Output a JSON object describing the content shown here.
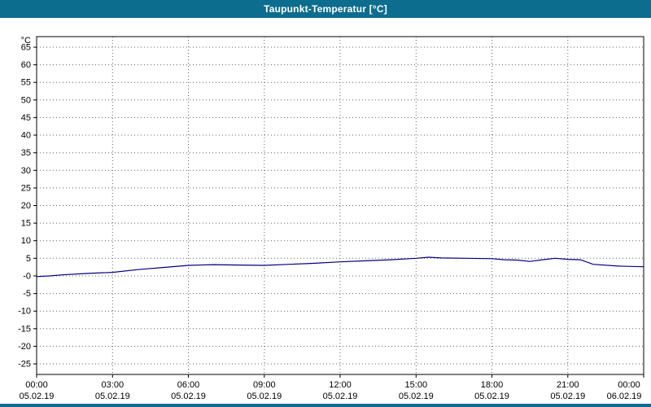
{
  "title": "Taupunkt-Temperatur [°C]",
  "colors": {
    "titlebar": "#0d6d8e",
    "line": "#000080",
    "grid": "#606060",
    "border": "#000000",
    "background": "#ffffff",
    "tick_text": "#000000"
  },
  "chart_data": {
    "type": "line",
    "title": "Taupunkt-Temperatur [°C]",
    "y_unit_label": "°C",
    "grid": true,
    "xlim": [
      0,
      24
    ],
    "ylim": [
      -28,
      68
    ],
    "x_ticks": [
      {
        "h": 0,
        "time": "00:00",
        "date": "05.02.19"
      },
      {
        "h": 3,
        "time": "03:00",
        "date": "05.02.19"
      },
      {
        "h": 6,
        "time": "06:00",
        "date": "05.02.19"
      },
      {
        "h": 9,
        "time": "09:00",
        "date": "05.02.19"
      },
      {
        "h": 12,
        "time": "12:00",
        "date": "05.02.19"
      },
      {
        "h": 15,
        "time": "15:00",
        "date": "05.02.19"
      },
      {
        "h": 18,
        "time": "18:00",
        "date": "05.02.19"
      },
      {
        "h": 21,
        "time": "21:00",
        "date": "05.02.19"
      },
      {
        "h": 24,
        "time": "00:00",
        "date": "06.02.19"
      }
    ],
    "y_ticks": [
      {
        "v": 65,
        "label": "65"
      },
      {
        "v": 60,
        "label": "60"
      },
      {
        "v": 55,
        "label": "55"
      },
      {
        "v": 50,
        "label": "50"
      },
      {
        "v": 45,
        "label": "45"
      },
      {
        "v": 40,
        "label": "40"
      },
      {
        "v": 35,
        "label": "35"
      },
      {
        "v": 30,
        "label": "30"
      },
      {
        "v": 25,
        "label": "25"
      },
      {
        "v": 20,
        "label": "20"
      },
      {
        "v": 15,
        "label": "15"
      },
      {
        "v": 10,
        "label": "10"
      },
      {
        "v": 5,
        "label": "5"
      },
      {
        "v": 0,
        "label": "-0"
      },
      {
        "v": -5,
        "label": "-5"
      },
      {
        "v": -10,
        "label": "-10"
      },
      {
        "v": -15,
        "label": "-15"
      },
      {
        "v": -20,
        "label": "-20"
      },
      {
        "v": -25,
        "label": "-25"
      }
    ],
    "series": [
      {
        "name": "Taupunkt-Temperatur",
        "color": "#000080",
        "x": [
          0,
          0.5,
          1,
          2,
          3,
          4,
          5,
          6,
          7,
          8,
          9,
          10,
          11,
          12,
          13,
          14,
          15,
          15.5,
          16,
          17,
          18,
          18.5,
          19,
          19.5,
          20,
          20.5,
          21,
          21.5,
          22,
          23,
          24
        ],
        "values": [
          -0.2,
          0,
          0.3,
          0.7,
          1.0,
          1.8,
          2.4,
          3.0,
          3.2,
          3.1,
          3.0,
          3.3,
          3.6,
          4.0,
          4.3,
          4.6,
          5.0,
          5.3,
          5.1,
          5.0,
          4.9,
          4.6,
          4.5,
          4.1,
          4.6,
          5.0,
          4.7,
          4.6,
          3.3,
          2.8,
          2.6
        ]
      }
    ]
  }
}
